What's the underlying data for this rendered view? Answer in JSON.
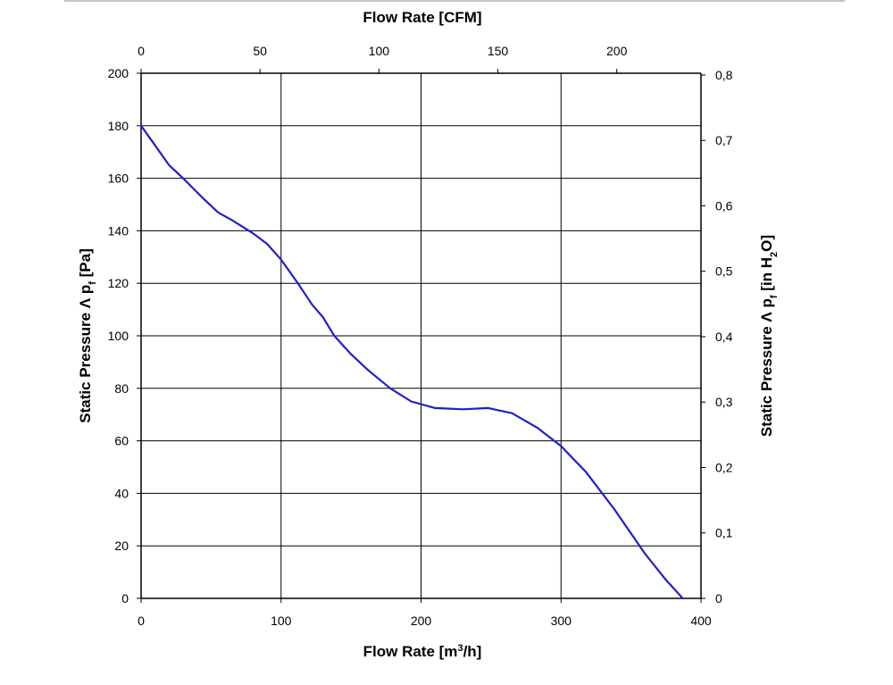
{
  "chart_data": {
    "type": "line",
    "x_bottom": {
      "label": "Flow Rate [m³/h]",
      "label_main": "Flow Rate [m",
      "label_sup": "3",
      "label_end": "/h]",
      "range": [
        0,
        400
      ],
      "ticks": [
        0,
        100,
        200,
        300,
        400
      ],
      "tick_labels": [
        "0",
        "100",
        "200",
        "300",
        "400"
      ]
    },
    "x_top": {
      "label": "Flow Rate [CFM]",
      "range": [
        0,
        235.4
      ],
      "ticks": [
        0,
        50,
        100,
        150,
        200
      ],
      "tick_labels": [
        "0",
        "50",
        "100",
        "150",
        "200"
      ]
    },
    "y_left": {
      "label": "Static Pressure Λ pf [Pa]",
      "label_main": "Static Pressure Λ p",
      "label_sub": "f",
      "label_end": " [Pa]",
      "range": [
        0,
        200
      ],
      "ticks": [
        0,
        20,
        40,
        60,
        80,
        100,
        120,
        140,
        160,
        180,
        200
      ],
      "tick_labels": [
        "0",
        "20",
        "40",
        "60",
        "80",
        "100",
        "120",
        "140",
        "160",
        "180",
        "200"
      ]
    },
    "y_right": {
      "label": "Static Pressure Λ pf [in H2O]",
      "label_main": "Static Pressure Λ p",
      "label_sub": "f",
      "label_mid": " [in H",
      "label_sub2": "2",
      "label_end": "O]",
      "range": [
        0,
        0.8027
      ],
      "ticks": [
        0,
        0.1,
        0.2,
        0.3,
        0.4,
        0.5,
        0.6,
        0.7,
        0.8
      ],
      "tick_labels": [
        "0",
        "0,1",
        "0,2",
        "0,3",
        "0,4",
        "0,5",
        "0,6",
        "0,7",
        "0,8"
      ]
    },
    "grid": true,
    "series": [
      {
        "color": "#1f1fc8",
        "x": [
          0,
          10,
          20,
          30,
          45,
          55,
          65,
          80,
          90,
          100,
          112,
          122,
          130,
          138,
          150,
          162,
          178,
          193,
          210,
          230,
          248,
          265,
          283,
          300,
          318,
          338,
          360,
          375,
          387
        ],
        "y": [
          180,
          172.5,
          165,
          160,
          152,
          147,
          144,
          139,
          135,
          129,
          120,
          112,
          107,
          100,
          93,
          87,
          80,
          75,
          72.5,
          72,
          72.5,
          70.5,
          65,
          58,
          48,
          34,
          17,
          7,
          0
        ]
      }
    ]
  }
}
